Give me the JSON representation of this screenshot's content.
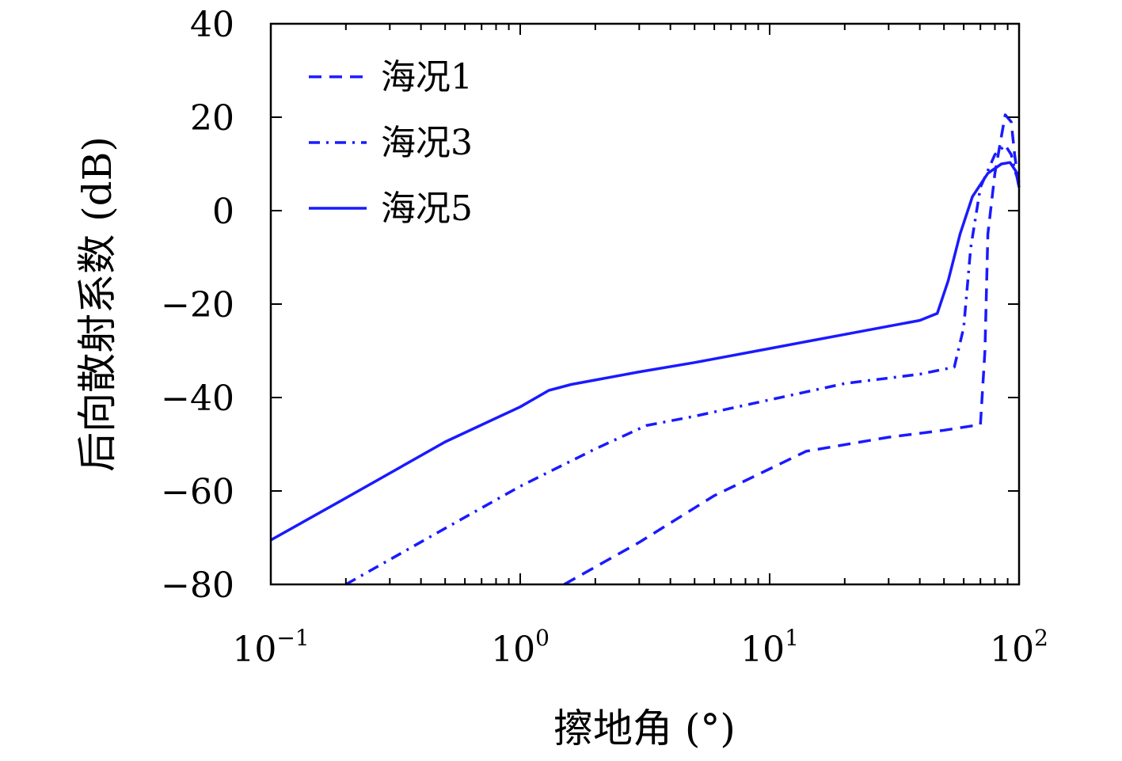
{
  "chart_data": {
    "type": "line",
    "xlabel": "擦地角 (°)",
    "ylabel": "后向散射系数 (dB)",
    "x_scale": "log",
    "xlim": [
      0.1,
      100
    ],
    "ylim": [
      -80,
      40
    ],
    "x_ticks": [
      {
        "value": 0.1,
        "base": "10",
        "exp": "−1"
      },
      {
        "value": 1,
        "base": "10",
        "exp": "0"
      },
      {
        "value": 10,
        "base": "10",
        "exp": "1"
      },
      {
        "value": 100,
        "base": "10",
        "exp": "2"
      }
    ],
    "y_ticks": [
      {
        "value": 40,
        "label": "40"
      },
      {
        "value": 20,
        "label": "20"
      },
      {
        "value": 0,
        "label": "0"
      },
      {
        "value": -20,
        "label": "−20"
      },
      {
        "value": -40,
        "label": "−40"
      },
      {
        "value": -60,
        "label": "−60"
      },
      {
        "value": -80,
        "label": "−80"
      }
    ],
    "grid": false,
    "legend_position": "top-left",
    "series": [
      {
        "name": "海况1",
        "style": "dashed",
        "color": "#1a1aff",
        "points": [
          [
            1.5,
            -80
          ],
          [
            3,
            -71
          ],
          [
            6,
            -61
          ],
          [
            14,
            -51.5
          ],
          [
            30,
            -48.5
          ],
          [
            50,
            -47
          ],
          [
            70,
            -45.8
          ],
          [
            73,
            -30
          ],
          [
            75,
            -5
          ],
          [
            80,
            8
          ],
          [
            88,
            20.5
          ],
          [
            93,
            19
          ],
          [
            96,
            12
          ],
          [
            100,
            5
          ]
        ]
      },
      {
        "name": "海况3",
        "style": "dashdot",
        "color": "#1a1aff",
        "points": [
          [
            0.2,
            -80
          ],
          [
            0.5,
            -68
          ],
          [
            1,
            -59
          ],
          [
            2,
            -51
          ],
          [
            3.2,
            -46
          ],
          [
            5,
            -44
          ],
          [
            10,
            -40.5
          ],
          [
            20,
            -37
          ],
          [
            40,
            -35
          ],
          [
            55,
            -33.5
          ],
          [
            60,
            -25
          ],
          [
            64,
            -8
          ],
          [
            70,
            5
          ],
          [
            80,
            12
          ],
          [
            88,
            14
          ],
          [
            93,
            12
          ],
          [
            97,
            8
          ],
          [
            100,
            6
          ]
        ]
      },
      {
        "name": "海况5",
        "style": "solid",
        "color": "#1a1aff",
        "points": [
          [
            0.1,
            -70.5
          ],
          [
            0.2,
            -61.5
          ],
          [
            0.5,
            -49.5
          ],
          [
            1,
            -42
          ],
          [
            1.3,
            -38.5
          ],
          [
            1.6,
            -37.2
          ],
          [
            3,
            -34.5
          ],
          [
            5,
            -32.5
          ],
          [
            10,
            -29.5
          ],
          [
            20,
            -26.5
          ],
          [
            40,
            -23.5
          ],
          [
            47,
            -22
          ],
          [
            52,
            -15
          ],
          [
            58,
            -5
          ],
          [
            65,
            3
          ],
          [
            75,
            8
          ],
          [
            85,
            10
          ],
          [
            92,
            10.3
          ],
          [
            97,
            8.5
          ],
          [
            100,
            5
          ]
        ]
      }
    ]
  }
}
